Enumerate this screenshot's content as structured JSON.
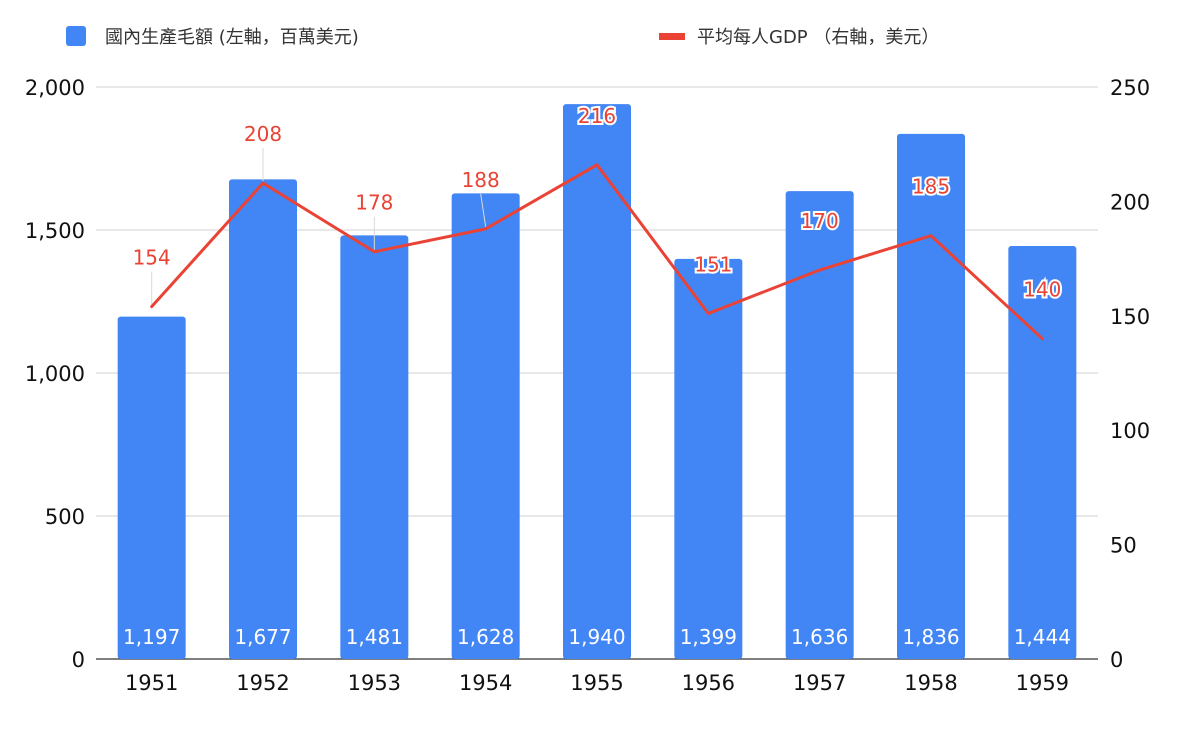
{
  "chart_data": {
    "type": "bar",
    "categories": [
      "1951",
      "1952",
      "1953",
      "1954",
      "1955",
      "1956",
      "1957",
      "1958",
      "1959"
    ],
    "series": [
      {
        "name": "國內生產毛額 (左軸，百萬美元)",
        "type": "bar",
        "axis": "left",
        "color": "#4285f4",
        "values": [
          1197,
          1677,
          1481,
          1628,
          1940,
          1399,
          1636,
          1836,
          1444
        ],
        "labels": [
          "1,197",
          "1,677",
          "1,481",
          "1,628",
          "1,940",
          "1,399",
          "1,636",
          "1,836",
          "1,444"
        ]
      },
      {
        "name": "平均每人GDP （右軸，美元）",
        "type": "line",
        "axis": "right",
        "color": "#ea4335",
        "values": [
          154,
          208,
          178,
          188,
          216,
          151,
          170,
          185,
          140
        ],
        "labels": [
          "154",
          "208",
          "178",
          "188",
          "216",
          "151",
          "170",
          "185",
          "140"
        ]
      }
    ],
    "y_left": {
      "range": [
        0,
        2000
      ],
      "ticks": [
        0,
        500,
        1000,
        1500,
        2000
      ],
      "tick_labels": [
        "0",
        "500",
        "1,000",
        "1,500",
        "2,000"
      ]
    },
    "y_right": {
      "range": [
        0,
        250
      ],
      "ticks": [
        0,
        50,
        100,
        150,
        200,
        250
      ],
      "tick_labels": [
        "0",
        "50",
        "100",
        "150",
        "200",
        "250"
      ]
    },
    "grid": true,
    "legend_position": "top"
  }
}
